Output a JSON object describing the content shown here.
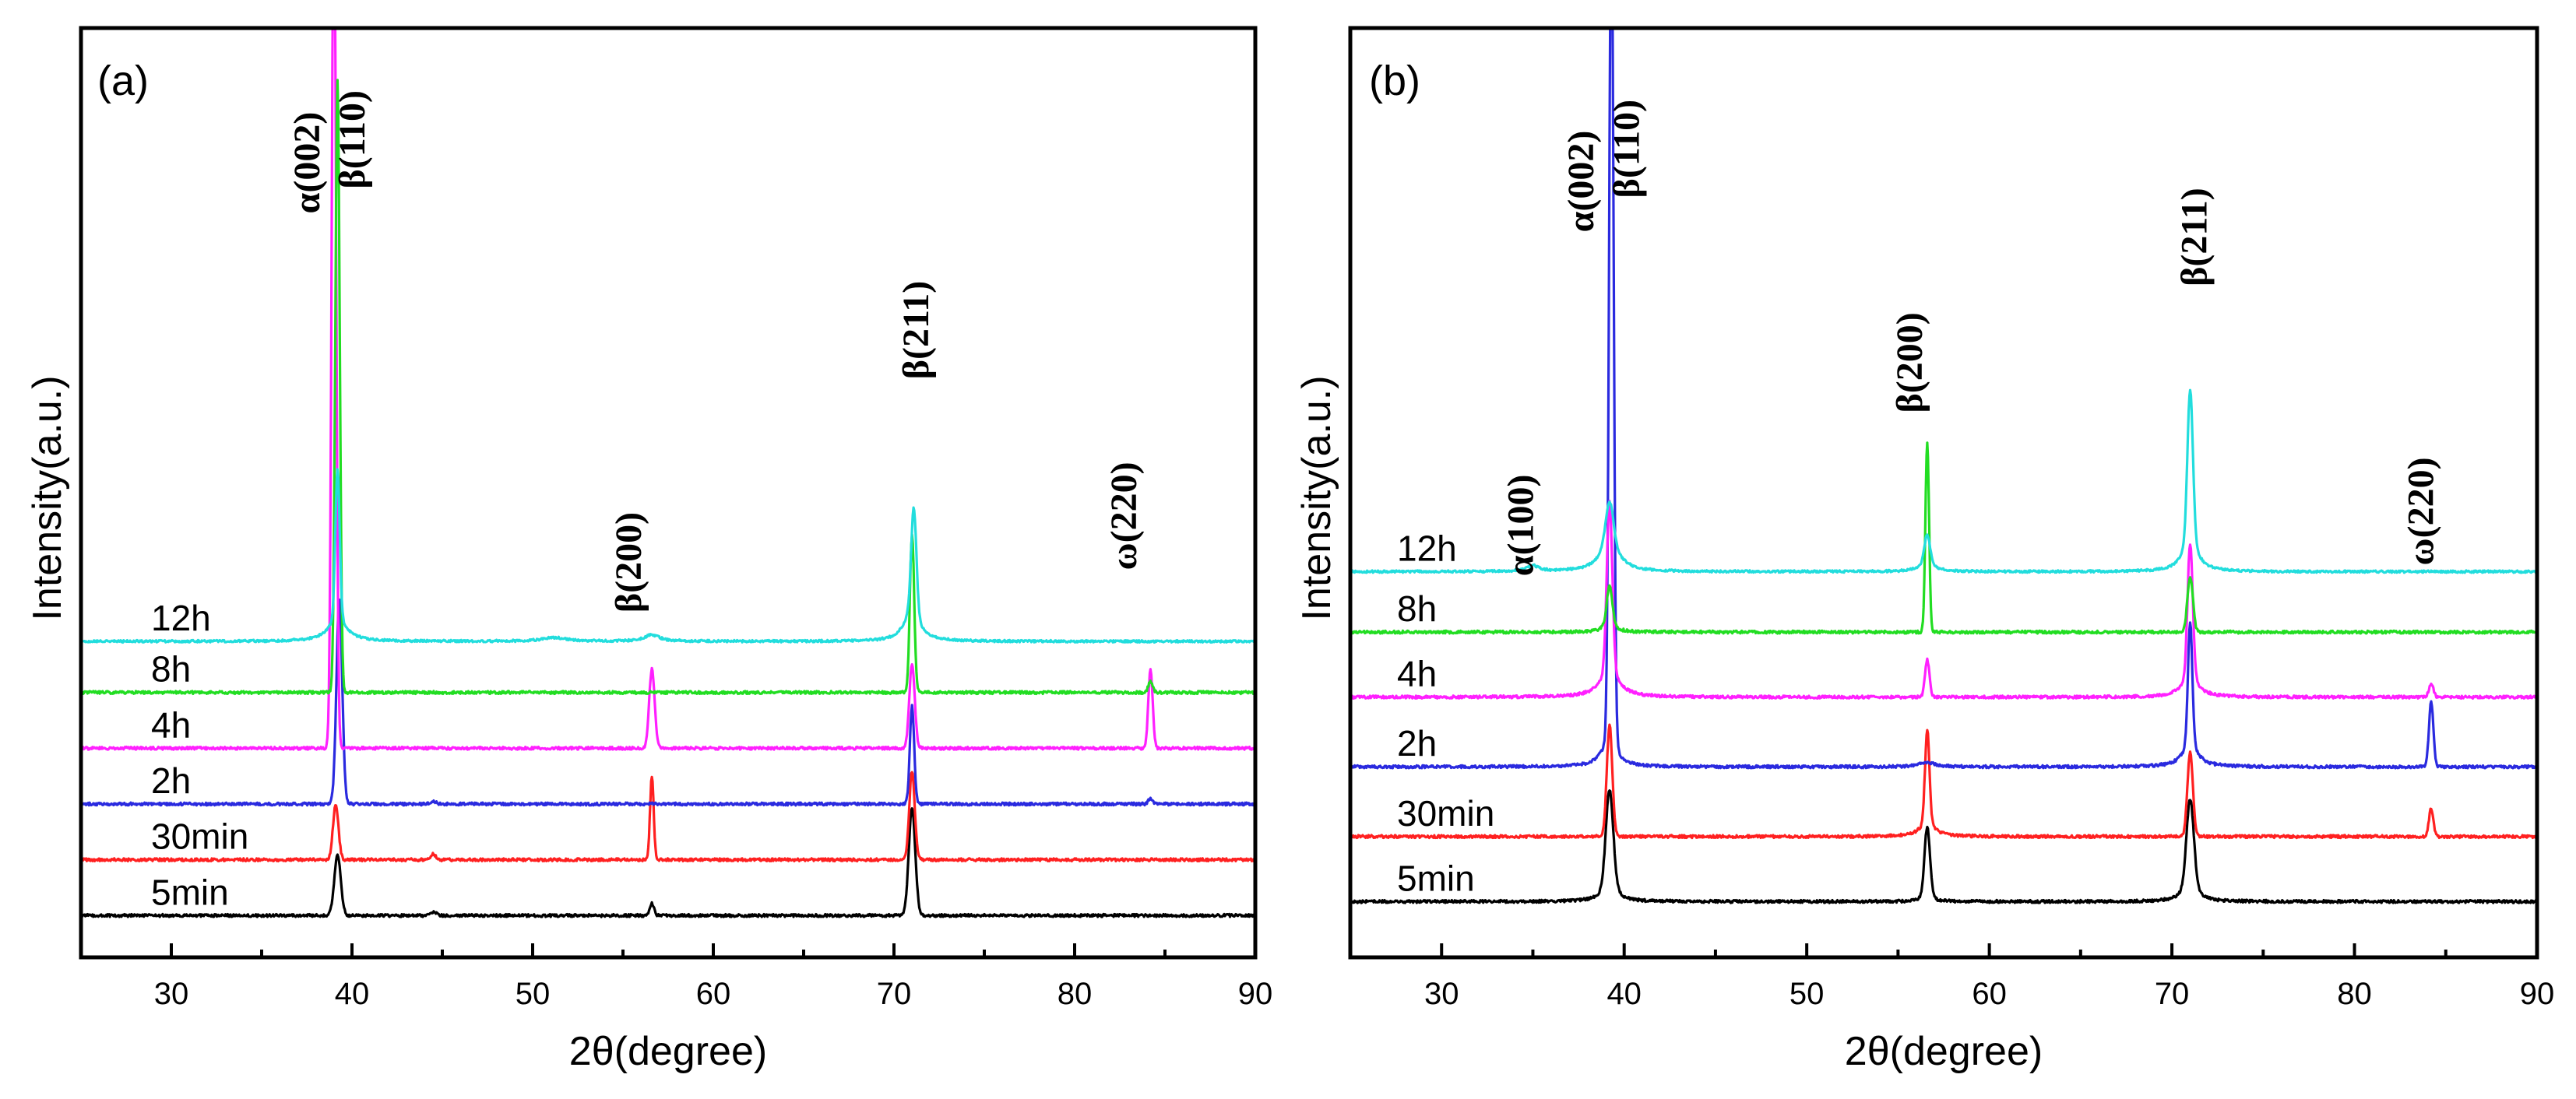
{
  "figure": {
    "background": "#ffffff",
    "axis_color": "#000000"
  },
  "chart_data": [
    {
      "id": "a",
      "type": "line",
      "panel_label": "(a)",
      "xlabel": "2θ(degree)",
      "ylabel": "Intensity(a.u.)",
      "xlim": [
        25,
        90
      ],
      "ylim": [
        0,
        100
      ],
      "xticks": [
        30,
        40,
        50,
        60,
        70,
        80,
        90
      ],
      "series": [
        {
          "name": "5min",
          "color": "#000000",
          "baseline": 4.5,
          "noise": 0.15,
          "peaks": [
            [
              39.2,
              6.5,
              0.18
            ],
            [
              44.5,
              0.4,
              0.15
            ],
            [
              56.6,
              1.3,
              0.12
            ],
            [
              71.0,
              11.5,
              0.18
            ]
          ]
        },
        {
          "name": "30min",
          "color": "#ff2020",
          "baseline": 10.5,
          "noise": 0.15,
          "peaks": [
            [
              39.1,
              6.0,
              0.15
            ],
            [
              44.5,
              0.6,
              0.15
            ],
            [
              56.6,
              9.0,
              0.1
            ],
            [
              71.0,
              9.5,
              0.15
            ]
          ]
        },
        {
          "name": "2h",
          "color": "#2a2adf",
          "baseline": 16.5,
          "noise": 0.15,
          "peaks": [
            [
              39.3,
              22.0,
              0.16
            ],
            [
              44.5,
              0.3,
              0.15
            ],
            [
              71.0,
              10.5,
              0.12
            ],
            [
              84.2,
              0.6,
              0.12
            ]
          ]
        },
        {
          "name": "4h",
          "color": "#ff20ff",
          "baseline": 22.5,
          "noise": 0.15,
          "peaks": [
            [
              39.0,
              93.0,
              0.12
            ],
            [
              56.6,
              8.5,
              0.15
            ],
            [
              71.0,
              9.0,
              0.15
            ],
            [
              84.2,
              8.5,
              0.12
            ]
          ]
        },
        {
          "name": "8h",
          "color": "#22dd22",
          "baseline": 28.5,
          "noise": 0.15,
          "peaks": [
            [
              39.2,
              66.0,
              0.12
            ],
            [
              71.0,
              17.0,
              0.12
            ],
            [
              84.2,
              1.2,
              0.12
            ]
          ]
        },
        {
          "name": "12h",
          "color": "#22dddd",
          "baseline": 34.0,
          "noise": 0.12,
          "broad": [
            [
              39.2,
              2.5,
              0.6
            ],
            [
              71.0,
              3.5,
              0.5
            ],
            [
              56.6,
              0.7,
              0.5
            ],
            [
              51.2,
              0.4,
              0.8
            ]
          ],
          "peaks": [
            [
              39.2,
              16.0,
              0.12
            ],
            [
              71.1,
              11.0,
              0.14
            ]
          ]
        }
      ],
      "annotations": [
        {
          "text": "α(002)",
          "x": 38.2,
          "y": 85.5
        },
        {
          "text": "β(110)",
          "x": 40.7,
          "y": 88.0
        },
        {
          "text": "β(200)",
          "x": 56.0,
          "y": 42.5
        },
        {
          "text": "β(211)",
          "x": 71.9,
          "y": 67.5
        },
        {
          "text": "ω(220)",
          "x": 83.4,
          "y": 47.5
        }
      ]
    },
    {
      "id": "b",
      "type": "line",
      "panel_label": "(b)",
      "xlabel": "2θ(degree)",
      "ylabel": "Intensity(a.u.)",
      "xlim": [
        25,
        90
      ],
      "ylim": [
        0,
        100
      ],
      "xticks": [
        30,
        40,
        50,
        60,
        70,
        80,
        90
      ],
      "series": [
        {
          "name": "5min",
          "color": "#000000",
          "baseline": 6.0,
          "noise": 0.15,
          "broad": [
            [
              39.2,
              2.0,
              0.5
            ],
            [
              71.0,
              2.0,
              0.5
            ],
            [
              56.6,
              1.0,
              0.3
            ]
          ],
          "peaks": [
            [
              39.2,
              10.0,
              0.2
            ],
            [
              56.6,
              7.0,
              0.15
            ],
            [
              71.0,
              9.0,
              0.2
            ]
          ]
        },
        {
          "name": "30min",
          "color": "#ff2020",
          "baseline": 13.0,
          "noise": 0.15,
          "broad": [
            [
              56.6,
              1.5,
              0.5
            ]
          ],
          "peaks": [
            [
              39.2,
              12.0,
              0.15
            ],
            [
              56.6,
              10.0,
              0.12
            ],
            [
              71.0,
              9.0,
              0.15
            ],
            [
              84.2,
              3.0,
              0.12
            ]
          ]
        },
        {
          "name": "2h",
          "color": "#2a2adf",
          "baseline": 20.5,
          "noise": 0.15,
          "broad": [
            [
              39.2,
              3.0,
              0.5
            ],
            [
              71.0,
              2.5,
              0.5
            ],
            [
              56.6,
              0.5,
              0.5
            ]
          ],
          "peaks": [
            [
              39.3,
              91.0,
              0.12
            ],
            [
              71.0,
              13.0,
              0.12
            ],
            [
              84.2,
              7.0,
              0.12
            ]
          ]
        },
        {
          "name": "4h",
          "color": "#ff20ff",
          "baseline": 28.0,
          "noise": 0.15,
          "broad": [
            [
              39.2,
              3.0,
              0.6
            ],
            [
              71.0,
              2.5,
              0.5
            ]
          ],
          "peaks": [
            [
              39.2,
              18.0,
              0.15
            ],
            [
              56.6,
              4.0,
              0.12
            ],
            [
              71.0,
              14.0,
              0.14
            ],
            [
              84.2,
              1.5,
              0.12
            ]
          ]
        },
        {
          "name": "8h",
          "color": "#22dd22",
          "baseline": 35.0,
          "noise": 0.15,
          "broad": [
            [
              39.2,
              1.0,
              0.4
            ]
          ],
          "peaks": [
            [
              39.2,
              4.0,
              0.15
            ],
            [
              56.6,
              20.5,
              0.1
            ],
            [
              71.0,
              6.0,
              0.15
            ]
          ]
        },
        {
          "name": "12h",
          "color": "#22dddd",
          "baseline": 41.5,
          "noise": 0.12,
          "broad": [
            [
              39.2,
              3.5,
              0.6
            ],
            [
              71.0,
              3.5,
              0.5
            ],
            [
              56.6,
              1.0,
              0.5
            ],
            [
              35.0,
              0.6,
              0.4
            ]
          ],
          "peaks": [
            [
              39.2,
              4.0,
              0.2
            ],
            [
              56.6,
              3.0,
              0.15
            ],
            [
              71.0,
              16.0,
              0.15
            ]
          ]
        }
      ],
      "annotations": [
        {
          "text": "α(100)",
          "x": 35.0,
          "y": 46.5
        },
        {
          "text": "α(002)",
          "x": 38.3,
          "y": 83.5
        },
        {
          "text": "β(110)",
          "x": 40.8,
          "y": 87.0
        },
        {
          "text": "β(200)",
          "x": 56.3,
          "y": 64.0
        },
        {
          "text": "β(211)",
          "x": 71.9,
          "y": 77.5
        },
        {
          "text": "ω(220)",
          "x": 84.3,
          "y": 48.0
        }
      ]
    }
  ]
}
